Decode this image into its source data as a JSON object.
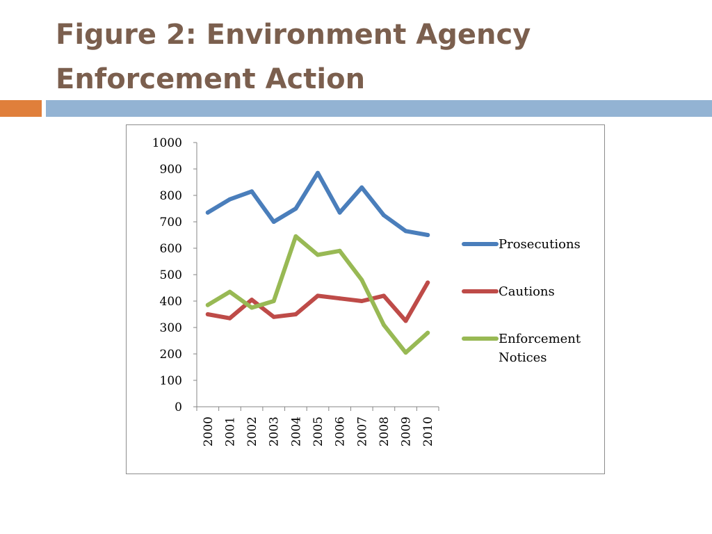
{
  "slide": {
    "title_line1": "Figure 2: Environment Agency",
    "title_line2": "Enforcement Action"
  },
  "colors": {
    "title": "#7b5f4e",
    "accent_orange": "#e07f3b",
    "accent_blue": "#93b3d3"
  },
  "chart_data": {
    "type": "line",
    "title": "",
    "xlabel": "",
    "ylabel": "",
    "categories": [
      "2000",
      "2001",
      "2002",
      "2003",
      "2004",
      "2005",
      "2006",
      "2007",
      "2008",
      "2009",
      "2010"
    ],
    "ylim": [
      0,
      1000
    ],
    "yticks": [
      "0",
      "100",
      "200",
      "300",
      "400",
      "500",
      "600",
      "700",
      "800",
      "900",
      "1000"
    ],
    "grid": false,
    "legend_position": "right",
    "series": [
      {
        "name": "Prosecutions",
        "color": "#4a7ebb",
        "values": [
          735,
          785,
          815,
          700,
          750,
          885,
          735,
          830,
          725,
          665,
          650
        ]
      },
      {
        "name": "Cautions",
        "color": "#be4b48",
        "values": [
          350,
          335,
          405,
          340,
          350,
          420,
          410,
          400,
          420,
          325,
          470
        ]
      },
      {
        "name": "Enforcement Notices",
        "name_line1": "Enforcement",
        "name_line2": "Notices",
        "color": "#98b954",
        "values": [
          385,
          435,
          375,
          400,
          645,
          575,
          590,
          480,
          310,
          205,
          280
        ]
      }
    ]
  }
}
